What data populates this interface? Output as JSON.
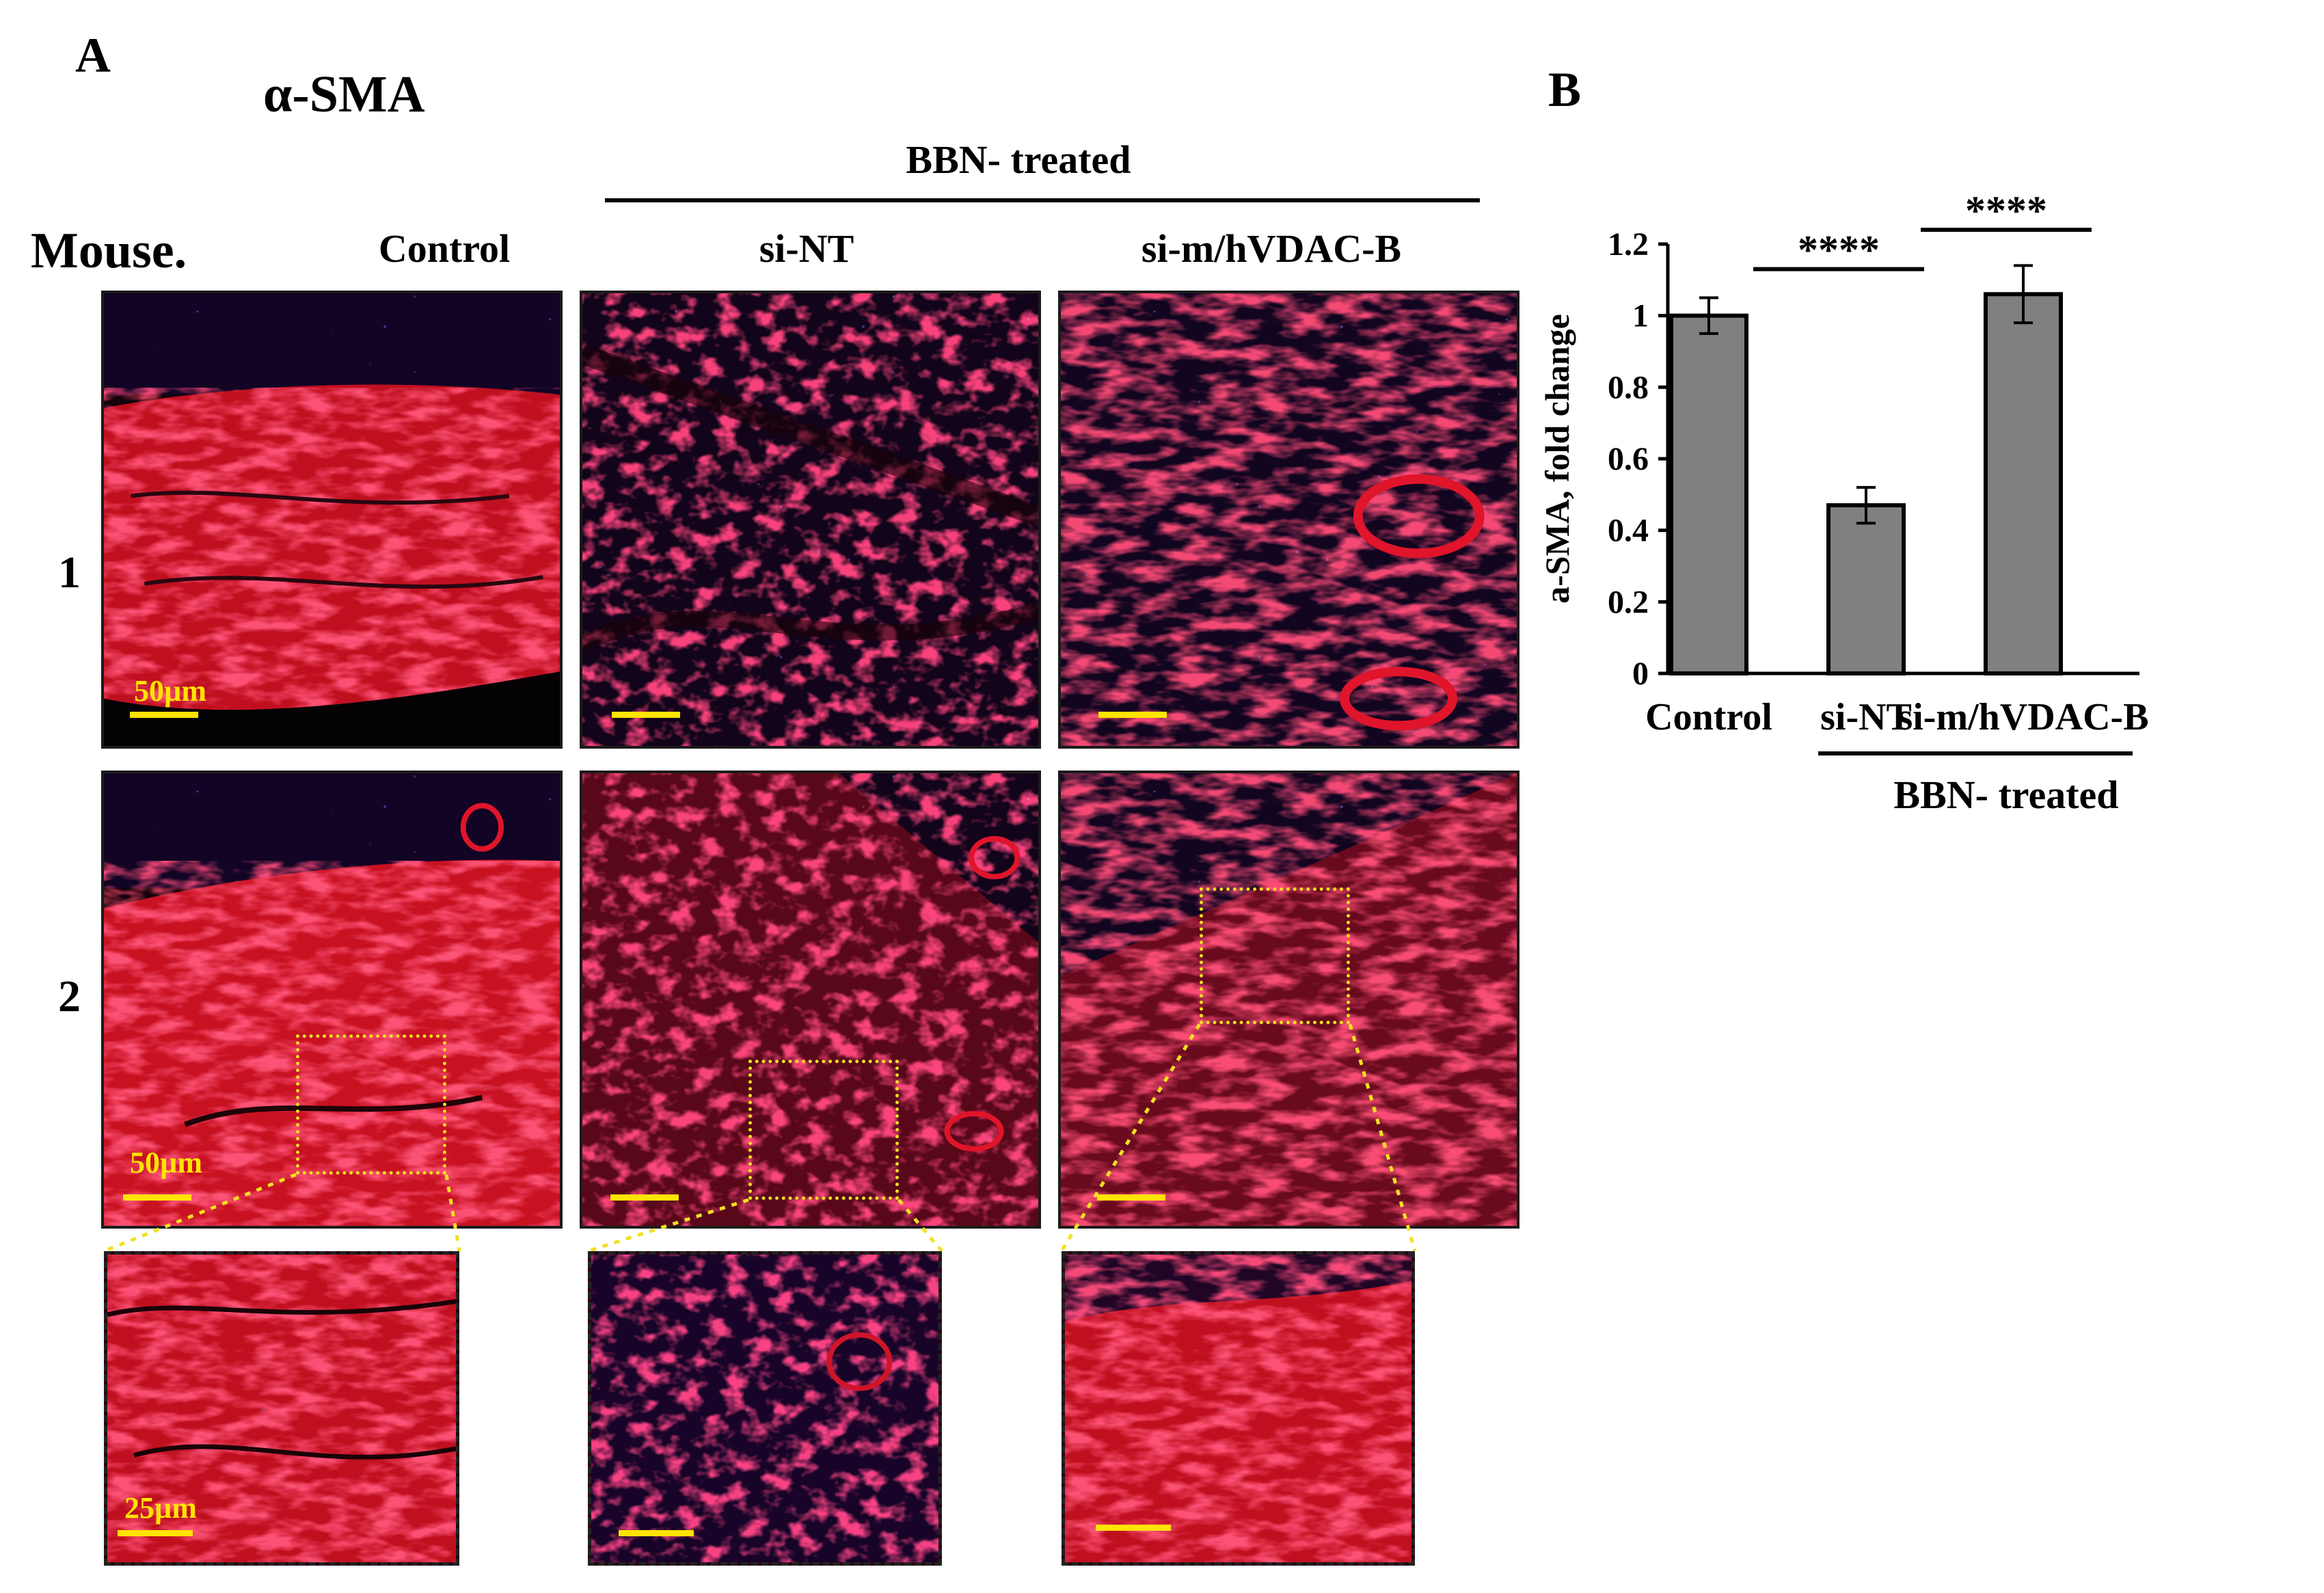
{
  "panel_a": {
    "letter": "A",
    "marker": "α-SMA",
    "group_label": "BBN- treated",
    "mouse_label": "Mouse.",
    "columns": [
      "Control",
      "si-NT",
      "si-m/hVDAC-B"
    ],
    "rows": [
      "1",
      "2"
    ],
    "scale_bar_main": "50µm",
    "scale_bar_zoom": "25µm"
  },
  "panel_b": {
    "letter": "B",
    "group_label": "BBN- treated",
    "significance": [
      "****",
      "****"
    ]
  },
  "colors": {
    "tissue_red": "#e8141c",
    "nuclei_blue": "#2a2af0",
    "scale_bar_yellow": "#ffe400",
    "bar_fill": "#808080"
  },
  "chart_data": {
    "type": "bar",
    "categories": [
      "Control",
      "si-NT",
      "si-m/hVDAC-B"
    ],
    "values": [
      1.0,
      0.47,
      1.06
    ],
    "errors": [
      0.05,
      0.05,
      0.08
    ],
    "ylabel": "a-SMA, fold change",
    "xlabel": "",
    "ylim": [
      0,
      1.2
    ],
    "yticks": [
      "0",
      "0.2",
      "0.4",
      "0.6",
      "0.8",
      "1",
      "1.2"
    ],
    "significance": [
      {
        "from": "Control",
        "to": "si-NT",
        "label": "****"
      },
      {
        "from": "si-NT",
        "to": "si-m/hVDAC-B",
        "label": "****"
      }
    ],
    "group_bracket": {
      "label": "BBN- treated",
      "categories": [
        "si-NT",
        "si-m/hVDAC-B"
      ]
    }
  }
}
